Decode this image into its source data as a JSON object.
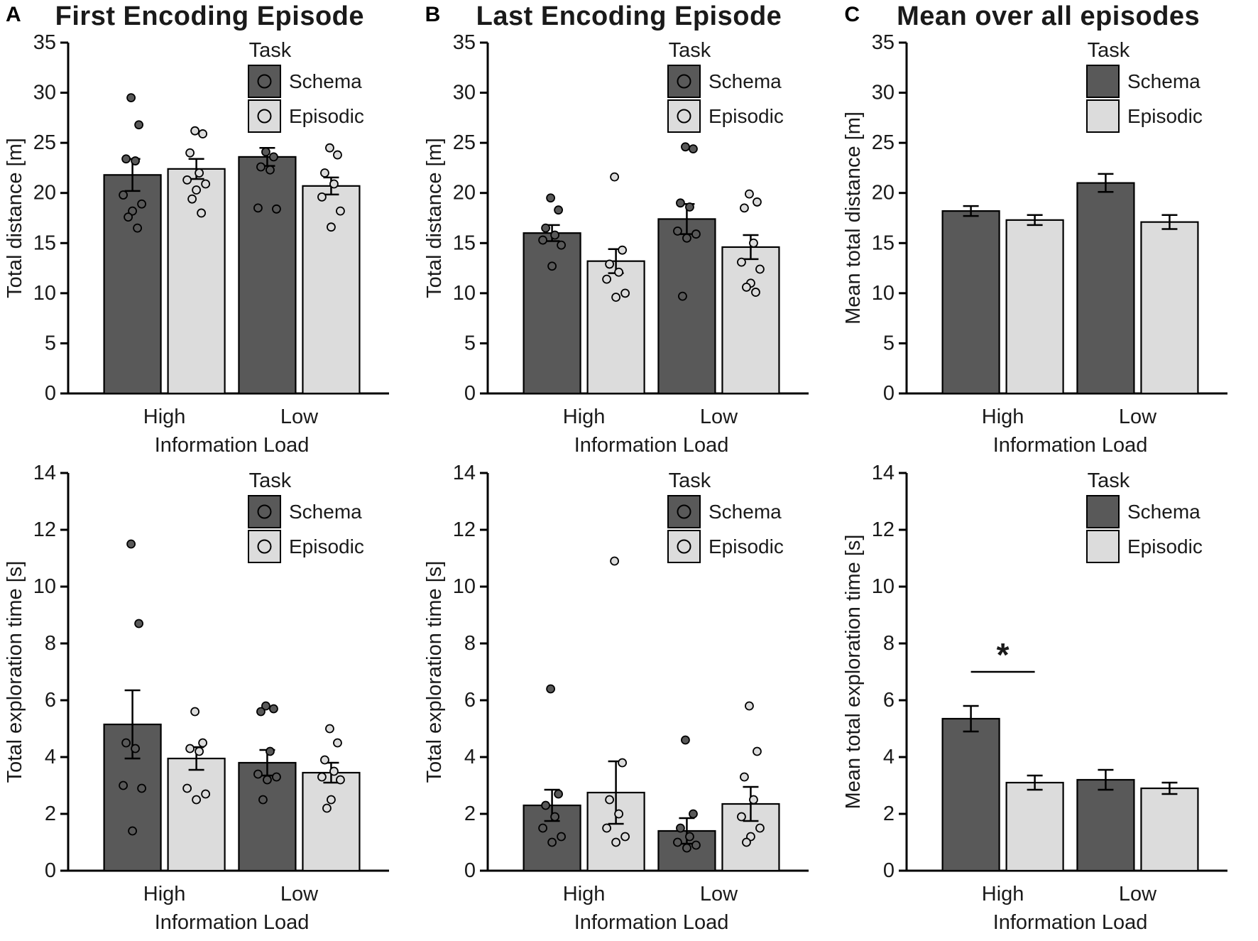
{
  "figure": {
    "panels": [
      {
        "letter": "A",
        "title": "First Encoding Episode"
      },
      {
        "letter": "B",
        "title": "Last Encoding Episode"
      },
      {
        "letter": "C",
        "title": "Mean over all episodes"
      }
    ]
  },
  "legend": {
    "title": "Task",
    "entries": [
      "Schema",
      "Episodic"
    ]
  },
  "colors": {
    "schema": "#595959",
    "episodic": "#dcdcdc",
    "axis": "#000000"
  },
  "chart_data": [
    {
      "type": "bar",
      "panel": "A",
      "position": "top",
      "ylabel": "Total distance [m]",
      "xlabel": "Information Load",
      "categories": [
        "High",
        "Low"
      ],
      "ylim": [
        0,
        35
      ],
      "ytick_step": 5,
      "legend_point_keys": true,
      "series": [
        {
          "name": "Schema",
          "means": [
            21.8,
            23.6
          ],
          "sem": [
            1.6,
            0.9
          ],
          "points": [
            [
              29.5,
              26.8,
              23.4,
              23.2,
              19.8,
              18.9,
              18.2,
              17.6,
              16.5
            ],
            [
              24.1,
              23.6,
              22.6,
              22.3,
              18.5,
              18.4
            ]
          ]
        },
        {
          "name": "Episodic",
          "means": [
            22.4,
            20.7
          ],
          "sem": [
            1.0,
            0.85
          ],
          "points": [
            [
              26.2,
              25.9,
              24.0,
              22.0,
              21.3,
              20.9,
              20.3,
              19.4,
              18.0
            ],
            [
              24.5,
              23.8,
              22.0,
              20.9,
              19.6,
              18.2,
              16.6
            ]
          ]
        }
      ],
      "significance": null
    },
    {
      "type": "bar",
      "panel": "B",
      "position": "top",
      "ylabel": "Total distance [m]",
      "xlabel": "Information Load",
      "categories": [
        "High",
        "Low"
      ],
      "ylim": [
        0,
        35
      ],
      "ytick_step": 5,
      "legend_point_keys": true,
      "series": [
        {
          "name": "Schema",
          "means": [
            16.0,
            17.4
          ],
          "sem": [
            0.8,
            1.5
          ],
          "points": [
            [
              19.5,
              18.3,
              16.5,
              15.8,
              15.3,
              14.8,
              12.7
            ],
            [
              24.6,
              24.4,
              19.0,
              18.6,
              16.2,
              15.9,
              15.5,
              9.7
            ]
          ]
        },
        {
          "name": "Episodic",
          "means": [
            13.2,
            14.6
          ],
          "sem": [
            1.2,
            1.2
          ],
          "points": [
            [
              21.6,
              14.3,
              12.9,
              12.1,
              11.4,
              10.0,
              9.6
            ],
            [
              19.9,
              19.1,
              18.5,
              15.0,
              13.1,
              12.4,
              11.0,
              10.6,
              10.1
            ]
          ]
        }
      ],
      "significance": null
    },
    {
      "type": "bar",
      "panel": "C",
      "position": "top",
      "ylabel": "Mean total distance [m]",
      "xlabel": "Information Load",
      "categories": [
        "High",
        "Low"
      ],
      "ylim": [
        0,
        35
      ],
      "ytick_step": 5,
      "legend_point_keys": false,
      "series": [
        {
          "name": "Schema",
          "means": [
            18.2,
            21.0
          ],
          "sem": [
            0.5,
            0.9
          ],
          "points": [
            [],
            []
          ]
        },
        {
          "name": "Episodic",
          "means": [
            17.3,
            17.1
          ],
          "sem": [
            0.5,
            0.7
          ],
          "points": [
            [],
            []
          ]
        }
      ],
      "significance": null
    },
    {
      "type": "bar",
      "panel": "A",
      "position": "bottom",
      "ylabel": "Total exploration time [s]",
      "xlabel": "Information Load",
      "categories": [
        "High",
        "Low"
      ],
      "ylim": [
        0,
        14
      ],
      "ytick_step": 2,
      "legend_point_keys": true,
      "series": [
        {
          "name": "Schema",
          "means": [
            5.15,
            3.8
          ],
          "sem": [
            1.2,
            0.45
          ],
          "points": [
            [
              11.5,
              8.7,
              4.5,
              4.3,
              3.0,
              2.9,
              1.4
            ],
            [
              5.8,
              5.7,
              5.6,
              4.2,
              3.4,
              3.3,
              3.2,
              2.5
            ]
          ]
        },
        {
          "name": "Episodic",
          "means": [
            3.95,
            3.45
          ],
          "sem": [
            0.4,
            0.35
          ],
          "points": [
            [
              5.6,
              4.5,
              4.3,
              4.2,
              2.9,
              2.7,
              2.5
            ],
            [
              5.0,
              4.5,
              3.9,
              3.5,
              3.3,
              3.2,
              2.5,
              2.2
            ]
          ]
        }
      ],
      "significance": null
    },
    {
      "type": "bar",
      "panel": "B",
      "position": "bottom",
      "ylabel": "Total exploration time [s]",
      "xlabel": "Information Load",
      "categories": [
        "High",
        "Low"
      ],
      "ylim": [
        0,
        14
      ],
      "ytick_step": 2,
      "legend_point_keys": true,
      "series": [
        {
          "name": "Schema",
          "means": [
            2.3,
            1.4
          ],
          "sem": [
            0.55,
            0.45
          ],
          "points": [
            [
              6.4,
              2.7,
              2.3,
              1.9,
              1.5,
              1.2,
              1.0
            ],
            [
              4.6,
              2.0,
              1.5,
              1.2,
              1.0,
              0.9,
              0.8
            ]
          ]
        },
        {
          "name": "Episodic",
          "means": [
            2.75,
            2.35
          ],
          "sem": [
            1.1,
            0.6
          ],
          "points": [
            [
              10.9,
              3.8,
              2.5,
              2.0,
              1.5,
              1.2,
              1.0
            ],
            [
              5.8,
              4.2,
              3.3,
              2.5,
              1.9,
              1.5,
              1.2,
              1.0
            ]
          ]
        }
      ],
      "significance": null
    },
    {
      "type": "bar",
      "panel": "C",
      "position": "bottom",
      "ylabel": "Mean total exploration time [s]",
      "xlabel": "Information Load",
      "categories": [
        "High",
        "Low"
      ],
      "ylim": [
        0,
        14
      ],
      "ytick_step": 2,
      "legend_point_keys": false,
      "series": [
        {
          "name": "Schema",
          "means": [
            5.35,
            3.2
          ],
          "sem": [
            0.45,
            0.35
          ],
          "points": [
            [],
            []
          ]
        },
        {
          "name": "Episodic",
          "means": [
            3.1,
            2.9
          ],
          "sem": [
            0.25,
            0.2
          ],
          "points": [
            [],
            []
          ]
        }
      ],
      "significance": {
        "category_index": 0,
        "y": 7.0,
        "label": "*"
      }
    }
  ]
}
